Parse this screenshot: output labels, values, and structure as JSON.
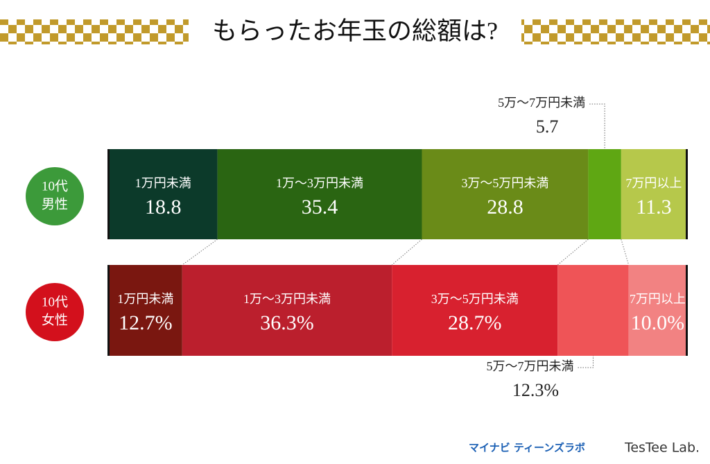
{
  "chart_data": {
    "type": "stacked-bar-100",
    "title": "もらったお年玉の総額は?",
    "categories": [
      "1万円未満",
      "1万〜3万円未満",
      "3万〜5万円未満",
      "5万〜7万円未満",
      "7万円以上"
    ],
    "outside_category": 3,
    "series": [
      {
        "name": [
          "10代",
          "男性"
        ],
        "badge_color": "#3c9a3a",
        "colors": [
          "#0c3a2a",
          "#2a6512",
          "#6a8b18",
          "#5fa713",
          "#b6c84b"
        ],
        "values": [
          18.8,
          35.4,
          28.8,
          5.7,
          11.3
        ]
      },
      {
        "name": [
          "10代",
          "女性"
        ],
        "badge_color": "#d3101c",
        "colors": [
          "#7a1710",
          "#bb1f2d",
          "#d8212f",
          "#ef5457",
          "#f28282"
        ],
        "values": [
          12.7,
          36.3,
          28.7,
          12.3,
          10.0
        ],
        "value_labels": [
          "12.7%",
          "36.3%",
          "28.7%",
          "12.3%",
          "10.0%"
        ]
      }
    ],
    "xlim": [
      0,
      100
    ]
  },
  "footer": {
    "logos": [
      "マイナビ ティーンズラボ",
      "TesTee Lab."
    ]
  }
}
